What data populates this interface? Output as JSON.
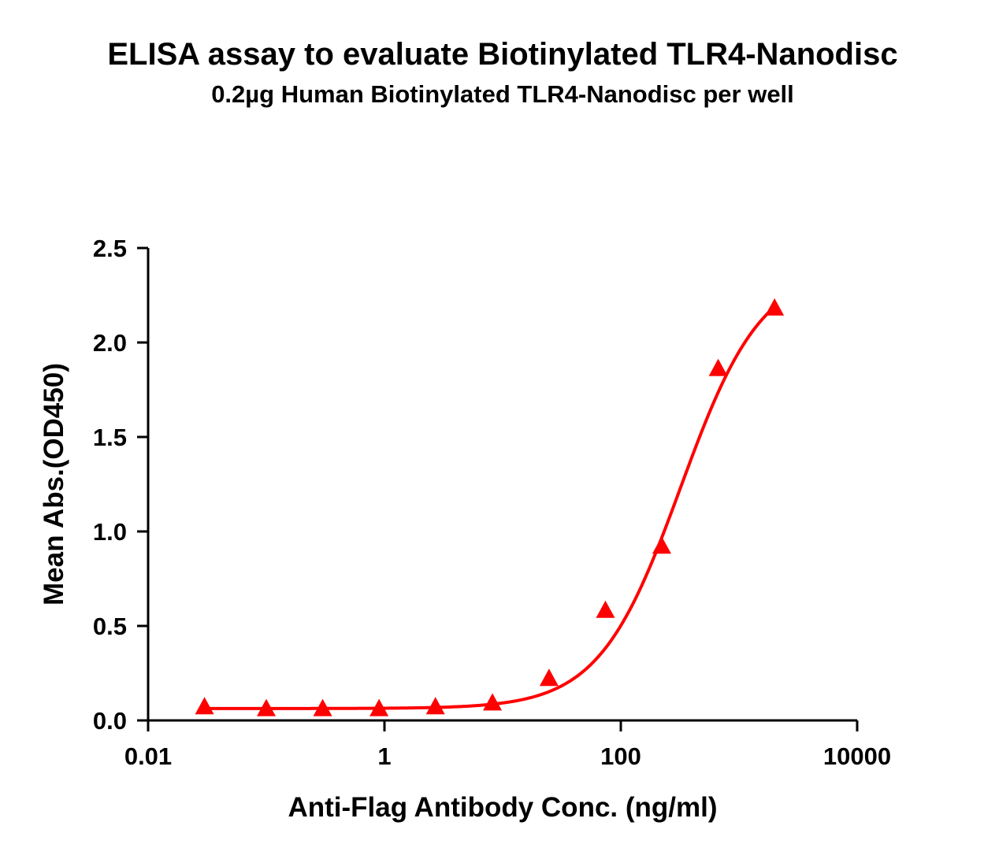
{
  "chart_data": {
    "type": "scatter",
    "title": "ELISA assay to evaluate Biotinylated TLR4-Nanodisc",
    "subtitle": "0.2µg Human Biotinylated TLR4-Nanodisc per well",
    "xlabel": "Anti-Flag Antibody Conc. (ng/ml)",
    "ylabel": "Mean Abs.(OD450)",
    "x_scale": "log",
    "xlim": [
      0.01,
      10000
    ],
    "ylim": [
      0,
      2.5
    ],
    "x_ticks": [
      0.01,
      1,
      100,
      10000
    ],
    "x_tick_labels": [
      "0.01",
      "1",
      "100",
      "10000"
    ],
    "y_ticks": [
      0,
      0.5,
      1.0,
      1.5,
      2.0,
      2.5
    ],
    "y_tick_labels": [
      "0.0",
      "0.5",
      "1.0",
      "1.5",
      "2.0",
      "2.5"
    ],
    "grid": false,
    "series": [
      {
        "marker": "triangle",
        "color": "#ff0000",
        "x": [
          0.03,
          0.1,
          0.3,
          0.9,
          2.7,
          8.2,
          24.7,
          74.1,
          222,
          667,
          2000
        ],
        "y": [
          0.07,
          0.06,
          0.06,
          0.06,
          0.07,
          0.09,
          0.22,
          0.58,
          0.92,
          1.86,
          2.18
        ],
        "fit": {
          "model": "4PL",
          "bottom": 0.063,
          "top": 2.4,
          "ec50": 320,
          "hill": 1.26
        }
      }
    ]
  }
}
